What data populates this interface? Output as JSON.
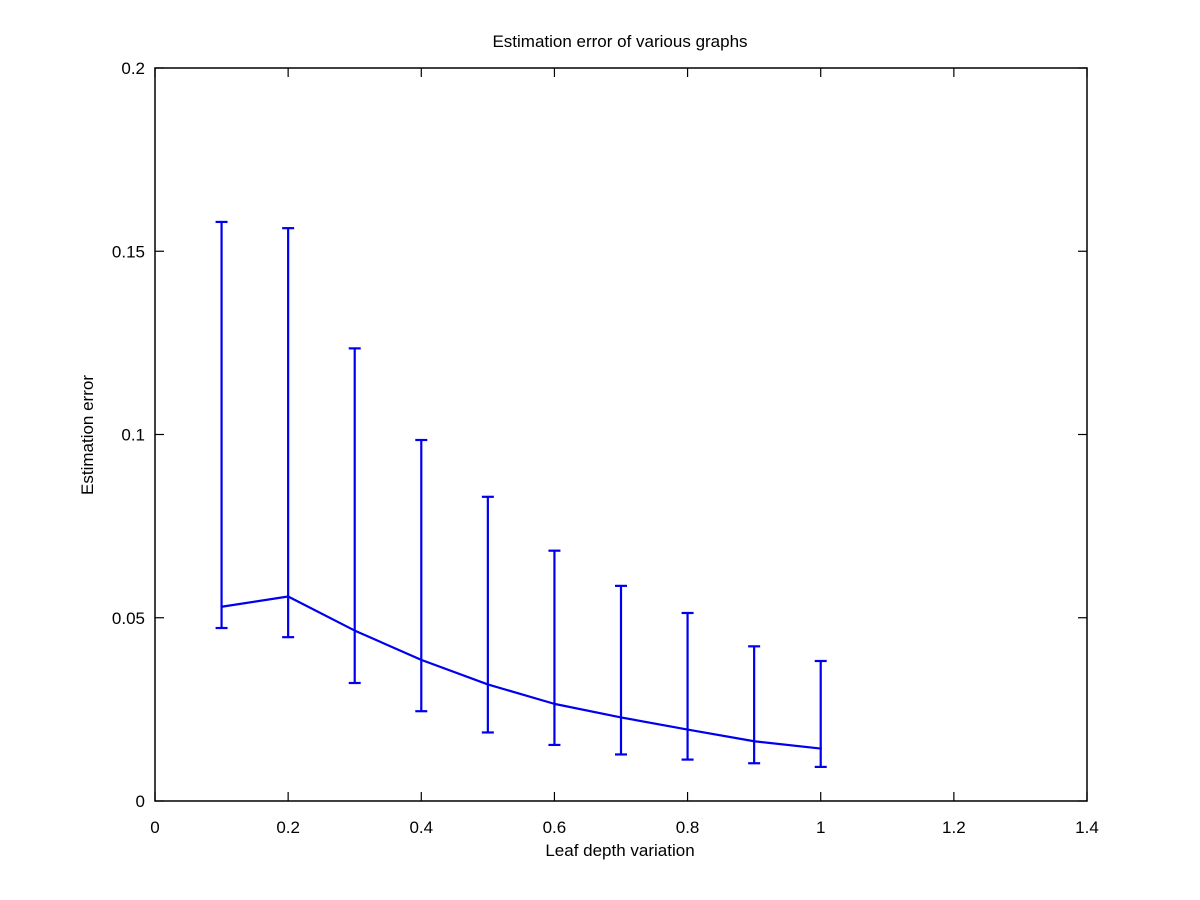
{
  "chart_data": {
    "type": "line",
    "title": "Estimation error of various graphs",
    "xlabel": "Leaf depth variation",
    "ylabel": "Estimation error",
    "xlim": [
      0,
      1.4
    ],
    "ylim": [
      0,
      0.2
    ],
    "xticks": [
      0,
      0.2,
      0.4,
      0.6,
      0.8,
      1,
      1.2,
      1.4
    ],
    "xtick_labels": [
      "0",
      "0.2",
      "0.4",
      "0.6",
      "0.8",
      "1",
      "1.2",
      "1.4"
    ],
    "yticks": [
      0,
      0.05,
      0.1,
      0.15,
      0.2
    ],
    "ytick_labels": [
      "0",
      "0.05",
      "0.1",
      "0.15",
      "0.2"
    ],
    "grid": false,
    "series": [
      {
        "color": "#0000ee",
        "x": [
          0.1,
          0.2,
          0.3,
          0.4,
          0.5,
          0.6,
          0.7,
          0.8,
          0.9,
          1.0
        ],
        "y": [
          0.053,
          0.0558,
          0.0465,
          0.0385,
          0.0318,
          0.0265,
          0.0228,
          0.0195,
          0.0163,
          0.0143
        ],
        "error_low": [
          0.0472,
          0.0447,
          0.0322,
          0.0245,
          0.0187,
          0.0153,
          0.0127,
          0.0113,
          0.0103,
          0.0093
        ],
        "error_high": [
          0.158,
          0.1563,
          0.1235,
          0.0985,
          0.083,
          0.0683,
          0.0587,
          0.0513,
          0.0422,
          0.0382
        ]
      }
    ]
  }
}
